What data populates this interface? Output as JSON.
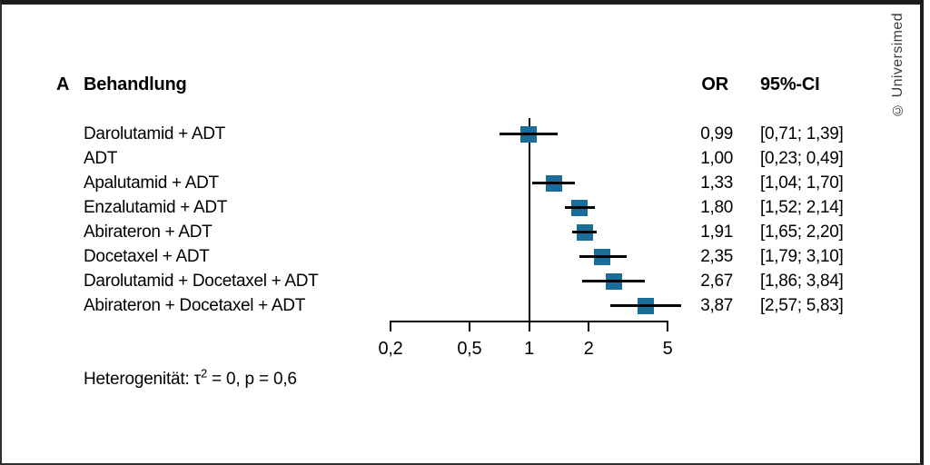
{
  "copyright": "© Universimed",
  "chart_data": {
    "type": "forest",
    "panel": "A",
    "headers": {
      "treatment": "Behandlung",
      "or": "OR",
      "ci": "95%-CI"
    },
    "x_axis": {
      "scale": "log",
      "range": [
        0.2,
        5
      ],
      "reference_line": 1,
      "ticks": [
        {
          "value": 0.2,
          "label": "0,2"
        },
        {
          "value": 0.5,
          "label": "0,5"
        },
        {
          "value": 1,
          "label": "1"
        },
        {
          "value": 2,
          "label": "2"
        },
        {
          "value": 5,
          "label": "5"
        }
      ]
    },
    "marker_color": "#1a6d99",
    "rows": [
      {
        "label": "Darolutamid + ADT",
        "or": 0.99,
        "or_label": "0,99",
        "ci_low": 0.71,
        "ci_high": 1.39,
        "ci_label": "[0,71; 1,39]",
        "marker": true
      },
      {
        "label": "ADT",
        "or": 1.0,
        "or_label": "1,00",
        "ci_low": 0.23,
        "ci_high": 0.49,
        "ci_label": "[0,23; 0,49]",
        "marker": false
      },
      {
        "label": "Apalutamid + ADT",
        "or": 1.33,
        "or_label": "1,33",
        "ci_low": 1.04,
        "ci_high": 1.7,
        "ci_label": "[1,04; 1,70]",
        "marker": true
      },
      {
        "label": "Enzalutamid + ADT",
        "or": 1.8,
        "or_label": "1,80",
        "ci_low": 1.52,
        "ci_high": 2.14,
        "ci_label": "[1,52; 2,14]",
        "marker": true
      },
      {
        "label": "Abirateron + ADT",
        "or": 1.91,
        "or_label": "1,91",
        "ci_low": 1.65,
        "ci_high": 2.2,
        "ci_label": "[1,65; 2,20]",
        "marker": true
      },
      {
        "label": "Docetaxel + ADT",
        "or": 2.35,
        "or_label": "2,35",
        "ci_low": 1.79,
        "ci_high": 3.1,
        "ci_label": "[1,79; 3,10]",
        "marker": true
      },
      {
        "label": "Darolutamid + Docetaxel + ADT",
        "or": 2.67,
        "or_label": "2,67",
        "ci_low": 1.86,
        "ci_high": 3.84,
        "ci_label": "[1,86; 3,84]",
        "marker": true
      },
      {
        "label": "Abirateron + Docetaxel + ADT",
        "or": 3.87,
        "or_label": "3,87",
        "ci_low": 2.57,
        "ci_high": 5.83,
        "ci_label": "[2,57; 5,83]",
        "marker": true
      }
    ],
    "footnote": {
      "prefix": "Heterogenität: τ",
      "sup": "2",
      "suffix": " = 0, p = 0,6"
    }
  }
}
